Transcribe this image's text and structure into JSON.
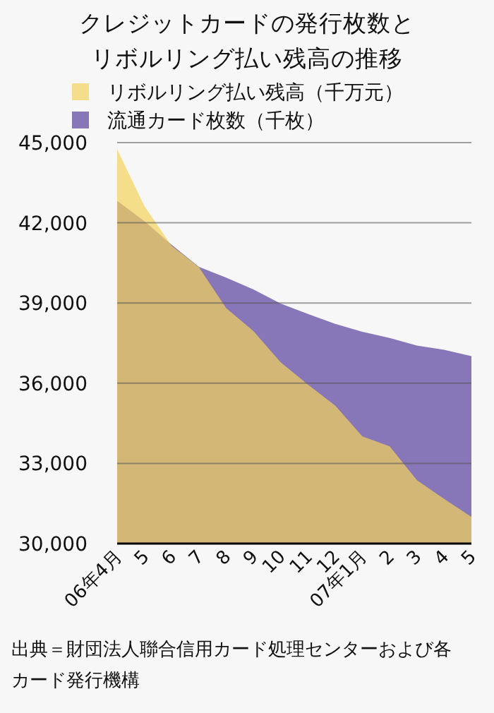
{
  "chart_data": {
    "type": "area",
    "title": "クレジットカードの発行枚数とリボルリング払い残高の推移",
    "categories": [
      "06年4月",
      "5",
      "6",
      "7",
      "8",
      "9",
      "10",
      "11",
      "12",
      "07年1月",
      "2",
      "3",
      "4",
      "5"
    ],
    "series": [
      {
        "name": "リボルリング払い残高（千万元）",
        "color": "#f2d35a",
        "values": [
          44750,
          42620,
          41140,
          40340,
          38810,
          37950,
          36780,
          35950,
          35160,
          34010,
          33640,
          32370,
          31670,
          31000
        ]
      },
      {
        "name": "流通カード枚数（千枚）",
        "color": "#8877b8",
        "values": [
          42820,
          42060,
          41180,
          40350,
          39950,
          39510,
          38980,
          38590,
          38220,
          37920,
          37690,
          37410,
          37250,
          37010
        ]
      }
    ],
    "ylim": [
      30000,
      45000
    ],
    "yticks": [
      {
        "value": 30000,
        "label": "30,000"
      },
      {
        "value": 33000,
        "label": "33,000"
      },
      {
        "value": 36000,
        "label": "36,000"
      },
      {
        "value": 39000,
        "label": "39,000"
      },
      {
        "value": 42000,
        "label": "42,000"
      },
      {
        "value": 45000,
        "label": "45,000"
      }
    ],
    "grid": "y",
    "legend": "top",
    "annotations": [
      "出典＝財団法人聯合信用カード処理センターおよび各カード発行機構"
    ]
  }
}
